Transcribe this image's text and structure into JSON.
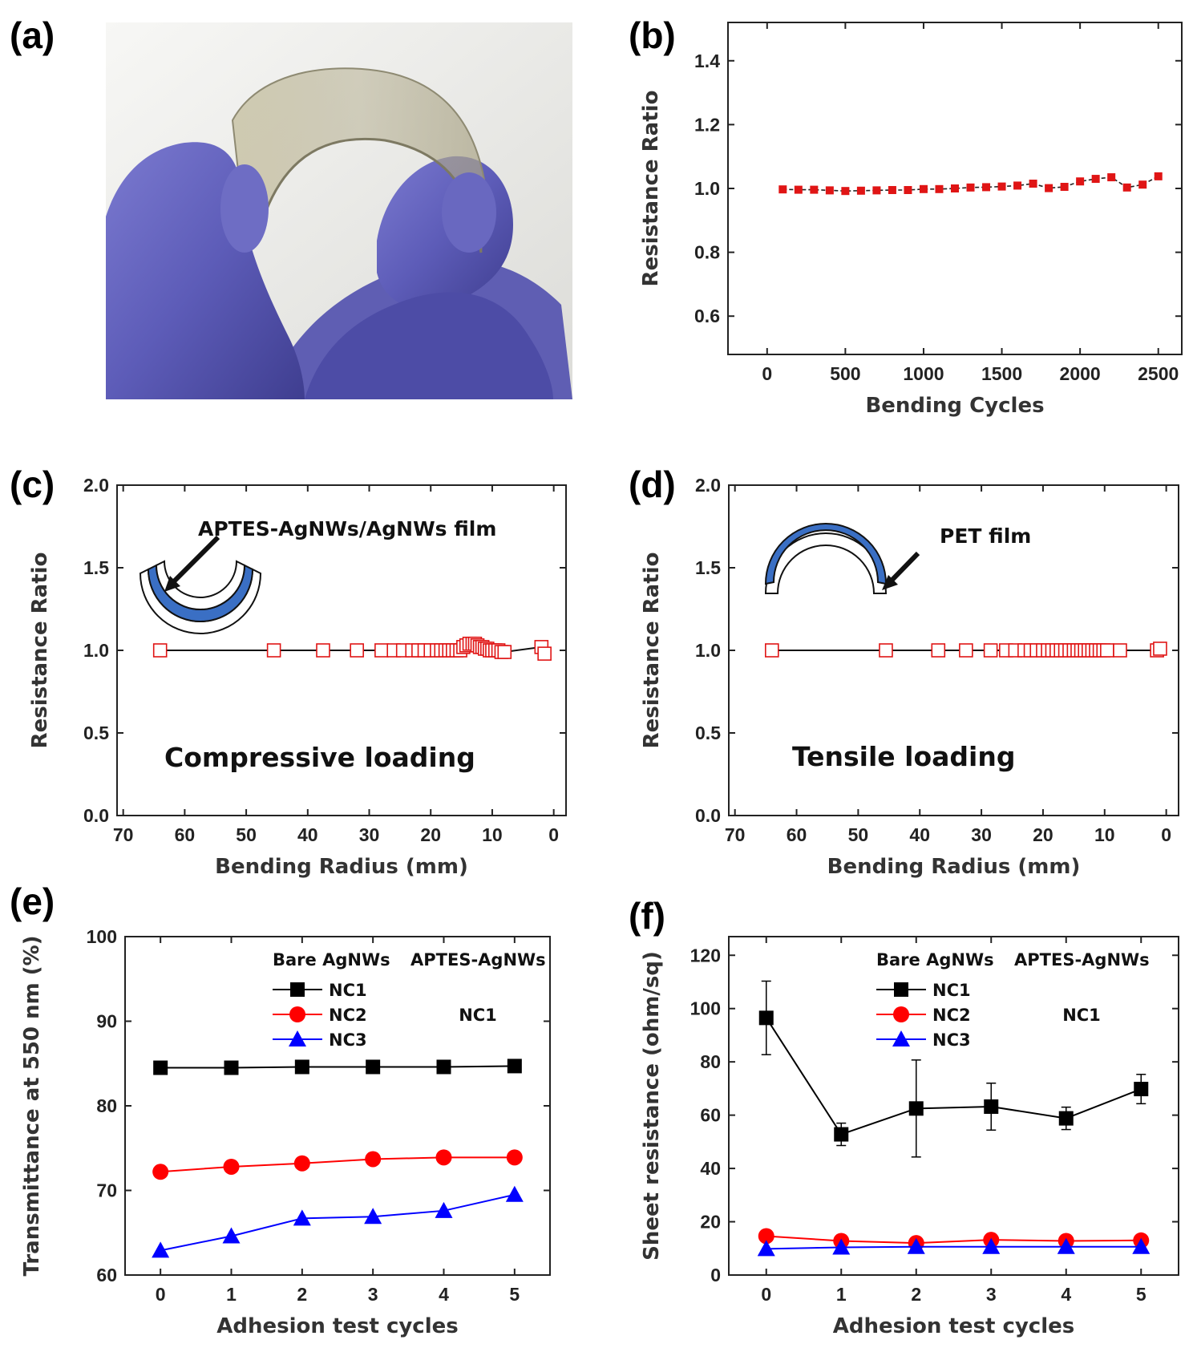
{
  "panel_labels": [
    "(a)",
    "(b)",
    "(c)",
    "(d)",
    "(e)",
    "(f)"
  ],
  "chart_data": [
    {
      "panel": "(a)",
      "type": "image",
      "description": "photo"
    },
    {
      "panel": "(b)",
      "type": "line",
      "xlabel": "Bending Cycles",
      "ylabel": "Resistance Ratio",
      "xlim": [
        -250,
        2650
      ],
      "ylim": [
        0.48,
        1.52
      ],
      "xticks": [
        0,
        500,
        1000,
        1500,
        2000,
        2500
      ],
      "yticks": [
        0.6,
        0.8,
        1.0,
        1.2,
        1.4
      ],
      "ytick_labels": [
        "0.6",
        "0.8",
        "1.0",
        "1.2",
        "1.4"
      ],
      "series": [
        {
          "x": [
            100,
            200,
            300,
            400,
            500,
            600,
            700,
            800,
            900,
            1000,
            1100,
            1200,
            1300,
            1400,
            1500,
            1600,
            1700,
            1800,
            1900,
            2000,
            2100,
            2200,
            2300,
            2400,
            2500
          ],
          "y": [
            0.997,
            0.996,
            0.996,
            0.994,
            0.992,
            0.993,
            0.994,
            0.995,
            0.995,
            0.998,
            0.998,
            1.0,
            1.003,
            1.004,
            1.006,
            1.009,
            1.015,
            1.001,
            1.005,
            1.022,
            1.03,
            1.035,
            1.003,
            1.012,
            1.038
          ]
        }
      ]
    },
    {
      "panel": "(c)",
      "type": "line",
      "xlabel": "Bending Radius (mm)",
      "ylabel": "Resistance Ratio",
      "xlim": [
        71,
        -2
      ],
      "ylim": [
        0.0,
        2.0
      ],
      "xticks": [
        70,
        60,
        50,
        40,
        30,
        20,
        10,
        0
      ],
      "yticks": [
        0.0,
        0.5,
        1.0,
        1.5,
        2.0
      ],
      "ytick_labels": [
        "0.0",
        "0.5",
        "1.0",
        "1.5",
        "2.0"
      ],
      "annotations": [
        "APTES-AgNWs/AgNWs film",
        "Compressive loading"
      ],
      "series": [
        {
          "x": [
            64,
            45.5,
            37.5,
            32,
            28,
            26,
            24.5,
            23,
            22,
            21,
            20,
            19,
            18.3,
            17.6,
            17,
            16.4,
            15.8,
            15.2,
            14.7,
            14.2,
            13.7,
            13.2,
            12.8,
            12.4,
            12.0,
            11.6,
            11.2,
            10.8,
            10.4,
            10,
            9.5,
            9,
            8.5,
            8,
            2,
            1.5
          ],
          "y": [
            1.0,
            1.0,
            1.0,
            1.0,
            1.0,
            1.0,
            1.0,
            1.0,
            1.0,
            1.0,
            1.0,
            1.0,
            1.0,
            1.0,
            1.0,
            1.0,
            1.0,
            1.0,
            1.02,
            1.03,
            1.04,
            1.04,
            1.04,
            1.03,
            1.02,
            1.02,
            1.01,
            1.01,
            1.0,
            1.0,
            1.0,
            1.0,
            0.99,
            0.99,
            1.02,
            0.98
          ]
        }
      ]
    },
    {
      "panel": "(d)",
      "type": "line",
      "xlabel": "Bending Radius (mm)",
      "ylabel": "Resistance Ratio",
      "xlim": [
        71,
        -2
      ],
      "ylim": [
        0.0,
        2.0
      ],
      "xticks": [
        70,
        60,
        50,
        40,
        30,
        20,
        10,
        0
      ],
      "yticks": [
        0.0,
        0.5,
        1.0,
        1.5,
        2.0
      ],
      "ytick_labels": [
        "0.0",
        "0.5",
        "1.0",
        "1.5",
        "2.0"
      ],
      "annotations": [
        "PET film",
        "Tensile loading"
      ],
      "series": [
        {
          "x": [
            64,
            45.5,
            37,
            32.5,
            28.5,
            26,
            24.5,
            23,
            22,
            21,
            20,
            19.2,
            18.5,
            17.8,
            17.1,
            16.4,
            15.7,
            15,
            14.4,
            13.8,
            13.2,
            12.6,
            12,
            11.4,
            10.8,
            10.2,
            9.6,
            7.5,
            1.5,
            1.0
          ],
          "y": [
            1.0,
            1.0,
            1.0,
            1.0,
            1.0,
            1.0,
            1.0,
            1.0,
            1.0,
            1.0,
            1.0,
            1.0,
            1.0,
            1.0,
            1.0,
            1.0,
            1.0,
            1.0,
            1.0,
            1.0,
            1.0,
            1.0,
            1.0,
            1.0,
            1.0,
            1.0,
            1.0,
            1.0,
            1.0,
            1.01
          ]
        }
      ]
    },
    {
      "panel": "(e)",
      "type": "line",
      "xlabel": "Adhesion test cycles",
      "ylabel": "Transmittance at 550 nm (%)",
      "xlim": [
        -0.5,
        5.5
      ],
      "ylim": [
        60,
        100
      ],
      "xticks": [
        0,
        1,
        2,
        3,
        4,
        5
      ],
      "yticks": [
        60,
        70,
        80,
        90,
        100
      ],
      "legend_header": [
        "Bare AgNWs",
        "APTES-AgNWs"
      ],
      "legend_note": "NC1",
      "series": [
        {
          "name": "NC1",
          "color": "#000000",
          "marker": "square",
          "x": [
            0,
            1,
            2,
            3,
            4,
            5
          ],
          "y": [
            84.5,
            84.5,
            84.6,
            84.6,
            84.6,
            84.7
          ]
        },
        {
          "name": "NC2",
          "color": "#ff0000",
          "marker": "circle",
          "x": [
            0,
            1,
            2,
            3,
            4,
            5
          ],
          "y": [
            72.2,
            72.8,
            73.2,
            73.7,
            73.9,
            73.9
          ]
        },
        {
          "name": "NC3",
          "color": "#0000ff",
          "marker": "triangle",
          "x": [
            0,
            1,
            2,
            3,
            4,
            5
          ],
          "y": [
            62.9,
            64.6,
            66.7,
            66.9,
            67.6,
            69.5
          ]
        }
      ]
    },
    {
      "panel": "(f)",
      "type": "line",
      "xlabel": "Adhesion test cycles",
      "ylabel": "Sheet resistance (ohm/sq)",
      "xlim": [
        -0.5,
        5.5
      ],
      "ylim": [
        0,
        127
      ],
      "xticks": [
        0,
        1,
        2,
        3,
        4,
        5
      ],
      "yticks": [
        0,
        20,
        40,
        60,
        80,
        100,
        120
      ],
      "legend_header": [
        "Bare AgNWs",
        "APTES-AgNWs"
      ],
      "legend_note": "NC1",
      "series": [
        {
          "name": "NC1",
          "color": "#000000",
          "marker": "square",
          "x": [
            0,
            1,
            2,
            3,
            4,
            5
          ],
          "y": [
            96.5,
            52.8,
            62.5,
            63.2,
            58.8,
            69.8
          ],
          "err": [
            13.8,
            4.2,
            18.2,
            8.8,
            4.2,
            5.5
          ]
        },
        {
          "name": "NC2",
          "color": "#ff0000",
          "marker": "circle",
          "x": [
            0,
            1,
            2,
            3,
            4,
            5
          ],
          "y": [
            14.6,
            12.8,
            12.0,
            13.2,
            12.8,
            13.0
          ]
        },
        {
          "name": "NC3",
          "color": "#0000ff",
          "marker": "triangle",
          "x": [
            0,
            1,
            2,
            3,
            4,
            5
          ],
          "y": [
            9.8,
            10.4,
            10.6,
            10.6,
            10.6,
            10.6
          ]
        }
      ]
    }
  ]
}
